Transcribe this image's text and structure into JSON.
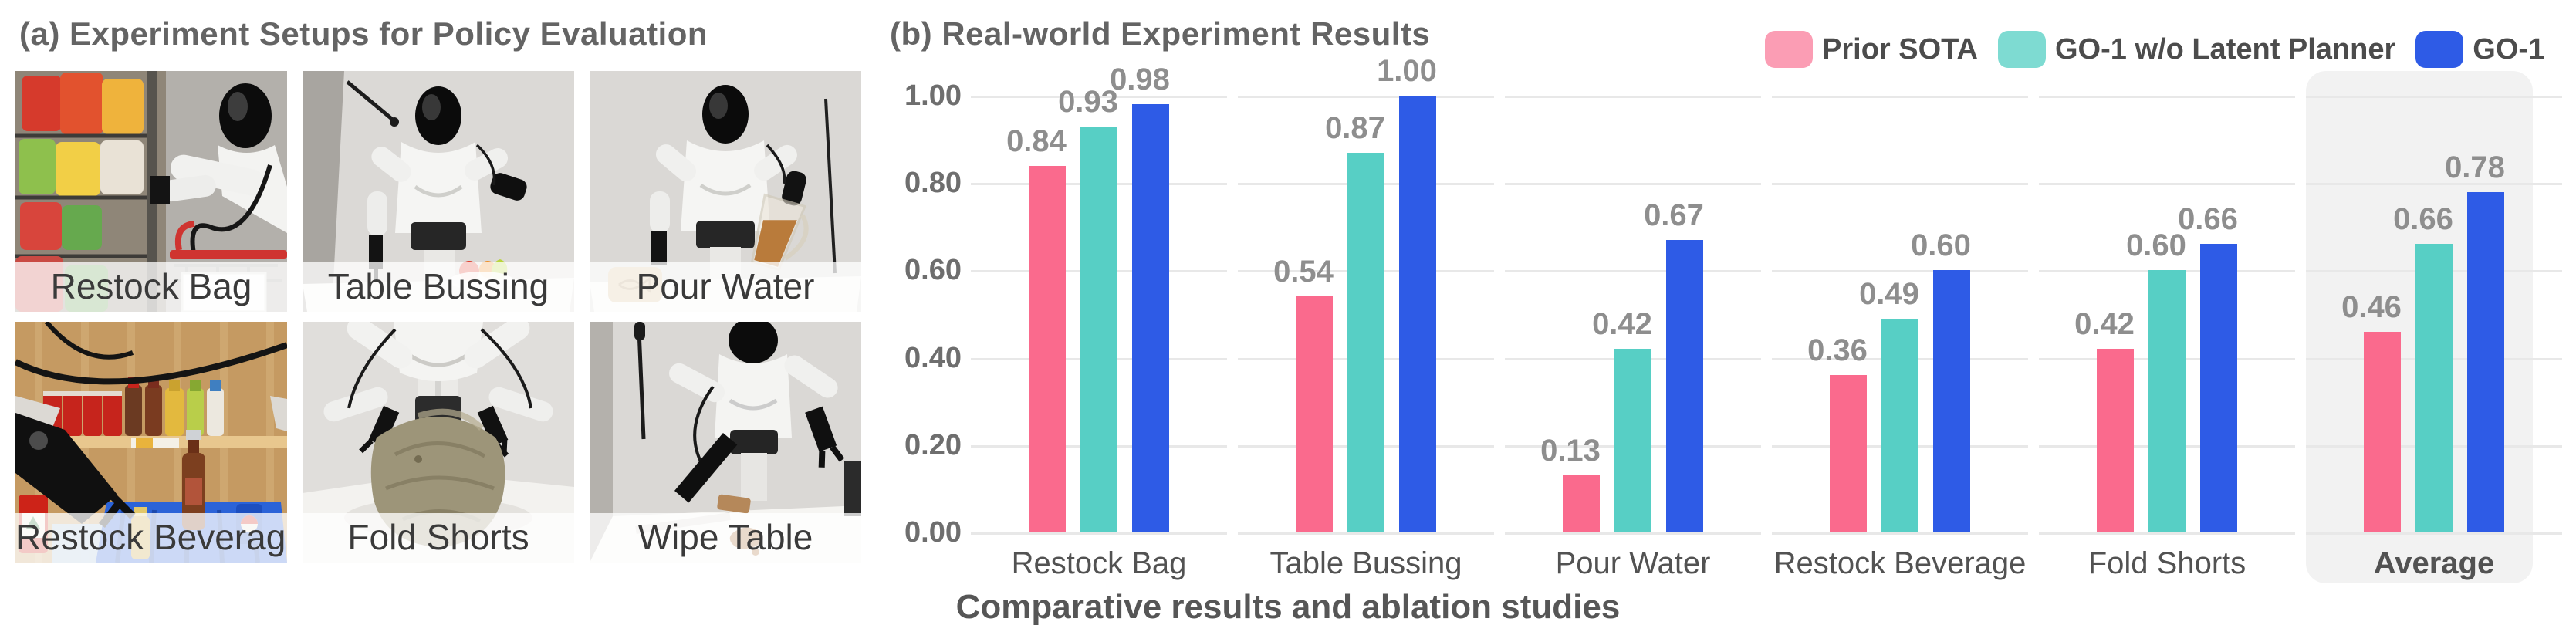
{
  "panel_a": {
    "title": "(a) Experiment Setups for Policy Evaluation",
    "setups": [
      {
        "label": "Restock Bag"
      },
      {
        "label": "Table Bussing"
      },
      {
        "label": "Pour Water"
      },
      {
        "label": "Restock Beverage"
      },
      {
        "label": "Fold Shorts"
      },
      {
        "label": "Wipe Table"
      }
    ]
  },
  "panel_b": {
    "title": "(b) Real-world Experiment Results",
    "caption": "Comparative results and ablation studies",
    "legend": [
      {
        "label": "Prior SOTA",
        "swatch_color": "#FB9DB4"
      },
      {
        "label": "GO-1 w/o Latent Planner",
        "swatch_color": "#7EDBD2"
      },
      {
        "label": "GO-1",
        "swatch_color": "#2E5BE6"
      }
    ]
  },
  "chart_data": {
    "type": "bar",
    "title": "(b) Real-world Experiment Results",
    "categories": [
      "Restock Bag",
      "Table Bussing",
      "Pour Water",
      "Restock Beverage",
      "Fold Shorts",
      "Average"
    ],
    "series": [
      {
        "name": "Prior SOTA",
        "color": "#FA6A8D",
        "values": [
          0.84,
          0.54,
          0.13,
          0.36,
          0.42,
          0.46
        ]
      },
      {
        "name": "GO-1 w/o Latent Planner",
        "color": "#57CFC5",
        "values": [
          0.93,
          0.87,
          0.42,
          0.49,
          0.6,
          0.66
        ]
      },
      {
        "name": "GO-1",
        "color": "#2E5BE6",
        "values": [
          0.98,
          1.0,
          0.67,
          0.6,
          0.66,
          0.78
        ]
      }
    ],
    "ylabel": "",
    "xlabel": "",
    "ylim": [
      0.0,
      1.0
    ],
    "yticks": [
      "0.00",
      "0.20",
      "0.40",
      "0.60",
      "0.80",
      "1.00"
    ],
    "grid": true,
    "legend_position": "top-right",
    "highlight_category": "Average",
    "highlight_color": "#F2F2F2",
    "gridline_color": "#E8E8E8",
    "caption": "Comparative results and ablation studies"
  }
}
